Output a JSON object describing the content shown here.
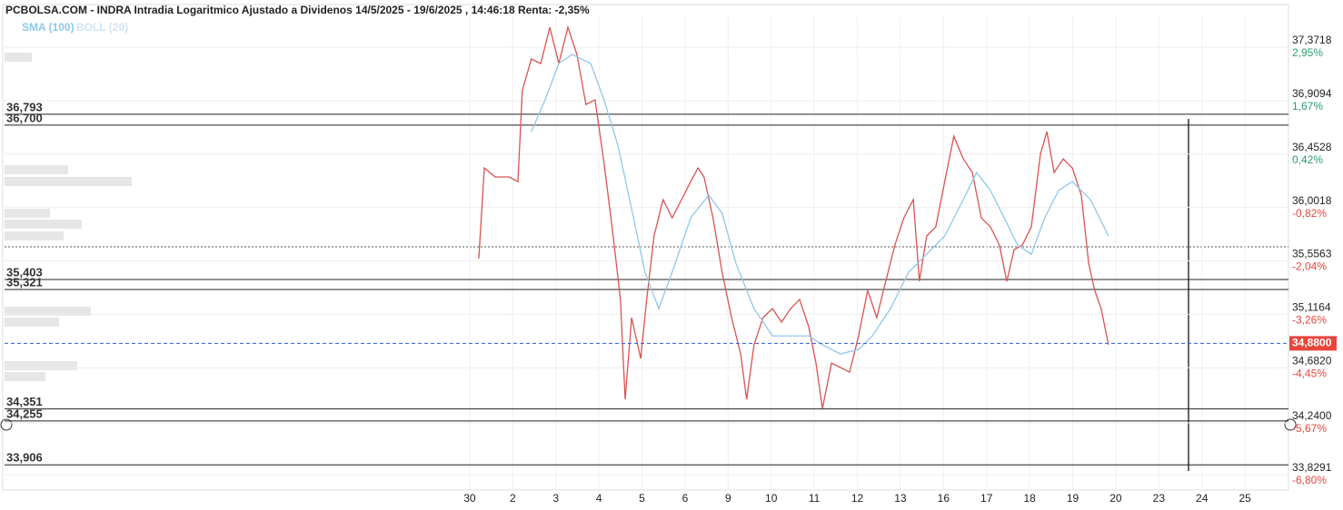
{
  "chart_data": {
    "type": "line",
    "title": "PCBOLSA.COM - INDRA Intradia Logaritmico Ajustado a Dividenos 14/5/2025 - 19/6/2025 , 14:46:18 Renta: -2,35%",
    "log_scale": true,
    "grid": true,
    "categories": [
      "30",
      "2",
      "3",
      "4",
      "5",
      "6",
      "9",
      "10",
      "11",
      "12",
      "13",
      "16",
      "17",
      "18",
      "19",
      "20",
      "23",
      "24",
      "25"
    ],
    "xlim": [
      -10.8,
      19.01
    ],
    "ylim": [
      33.708,
      37.642
    ],
    "yticks": [
      {
        "value": 37.3718,
        "label": "37,3718",
        "pct": "2,95%"
      },
      {
        "value": 36.9094,
        "label": "36,9094",
        "pct": "1,67%"
      },
      {
        "value": 36.4528,
        "label": "36,4528",
        "pct": "0,42%"
      },
      {
        "value": 36.0018,
        "label": "36,0018",
        "pct": "-0,82%"
      },
      {
        "value": 35.5563,
        "label": "35,5563",
        "pct": "-2,04%"
      },
      {
        "value": 35.1164,
        "label": "35,1164",
        "pct": "-3,26%"
      },
      {
        "value": 34.682,
        "label": "34,6820",
        "pct": "-4,45%"
      },
      {
        "value": 34.24,
        "label": "34,2400",
        "pct": "-5,67%"
      },
      {
        "value": 33.8291,
        "label": "33,8291",
        "pct": "-6,80%"
      }
    ],
    "levels": [
      {
        "value": 36.793,
        "label": "36,793"
      },
      {
        "value": 36.7,
        "label": "36,700"
      },
      {
        "value": 35.403,
        "label": "35,403"
      },
      {
        "value": 35.321,
        "label": "35,321"
      },
      {
        "value": 34.351,
        "label": "34,351"
      },
      {
        "value": 34.255,
        "label": "34,255"
      },
      {
        "value": 33.906,
        "label": "33,906"
      }
    ],
    "last": {
      "value": 34.88,
      "label": "34,8800",
      "color": "#e8463c"
    },
    "price": {
      "color": "#d9534f",
      "x": [
        0.21,
        0.34,
        0.59,
        0.91,
        1.12,
        1.22,
        1.43,
        1.65,
        1.86,
        2.07,
        2.28,
        2.49,
        2.7,
        2.91,
        3.12,
        3.33,
        3.5,
        3.61,
        3.76,
        3.97,
        4.11,
        4.28,
        4.49,
        4.7,
        4.92,
        5.13,
        5.3,
        5.44,
        5.65,
        5.86,
        6.08,
        6.29,
        6.43,
        6.6,
        6.81,
        7.03,
        7.24,
        7.45,
        7.66,
        7.87,
        8.04,
        8.19,
        8.4,
        8.61,
        8.82,
        9.03,
        9.24,
        9.45,
        9.66,
        9.87,
        10.08,
        10.3,
        10.44,
        10.61,
        10.82,
        11.03,
        11.24,
        11.46,
        11.67,
        11.88,
        12.09,
        12.3,
        12.47,
        12.64,
        12.83,
        13.04,
        13.25,
        13.4,
        13.57,
        13.78,
        13.99,
        14.2,
        14.37,
        14.51,
        14.66,
        14.83
      ],
      "values": [
        35.575,
        36.335,
        36.259,
        36.259,
        36.22,
        36.995,
        37.269,
        37.23,
        37.546,
        37.23,
        37.546,
        37.309,
        36.877,
        36.916,
        36.374,
        35.764,
        35.238,
        34.428,
        35.09,
        34.757,
        35.238,
        35.764,
        36.068,
        35.915,
        36.068,
        36.22,
        36.335,
        36.259,
        35.915,
        35.463,
        35.09,
        34.794,
        34.428,
        34.868,
        35.09,
        35.164,
        35.053,
        35.164,
        35.238,
        35.015,
        34.72,
        34.355,
        34.72,
        34.684,
        34.647,
        34.941,
        35.313,
        35.09,
        35.388,
        35.688,
        35.915,
        36.068,
        35.388,
        35.764,
        35.84,
        36.22,
        36.605,
        36.413,
        36.297,
        35.915,
        35.84,
        35.688,
        35.388,
        35.65,
        35.688,
        35.84,
        36.451,
        36.644,
        36.297,
        36.413,
        36.335,
        36.106,
        35.537,
        35.313,
        35.164,
        34.868
      ]
    },
    "series": [
      {
        "name": "SMA (100)",
        "color": "#8fc8ec",
        "x": [
          1.43,
          1.75,
          2.07,
          2.38,
          2.81,
          3.12,
          3.44,
          3.76,
          4.07,
          4.39,
          4.7,
          5.13,
          5.55,
          5.86,
          6.18,
          6.6,
          7.03,
          7.45,
          7.87,
          8.19,
          8.61,
          9.03,
          9.35,
          9.77,
          10.19,
          10.61,
          11.03,
          11.46,
          11.77,
          12.09,
          12.41,
          12.72,
          13.04,
          13.35,
          13.67,
          13.99,
          14.41,
          14.83
        ],
        "values": [
          36.644,
          36.916,
          37.23,
          37.309,
          37.23,
          36.916,
          36.528,
          35.991,
          35.463,
          35.164,
          35.463,
          35.915,
          36.106,
          35.953,
          35.537,
          35.164,
          34.941,
          34.941,
          34.941,
          34.868,
          34.794,
          34.831,
          34.941,
          35.164,
          35.463,
          35.612,
          35.764,
          36.068,
          36.297,
          36.144,
          35.915,
          35.688,
          35.612,
          35.915,
          36.144,
          36.22,
          36.068,
          35.764
        ]
      }
    ],
    "bollinger": {
      "name": "BOLL (20)",
      "color": "#cfe3f3"
    }
  }
}
